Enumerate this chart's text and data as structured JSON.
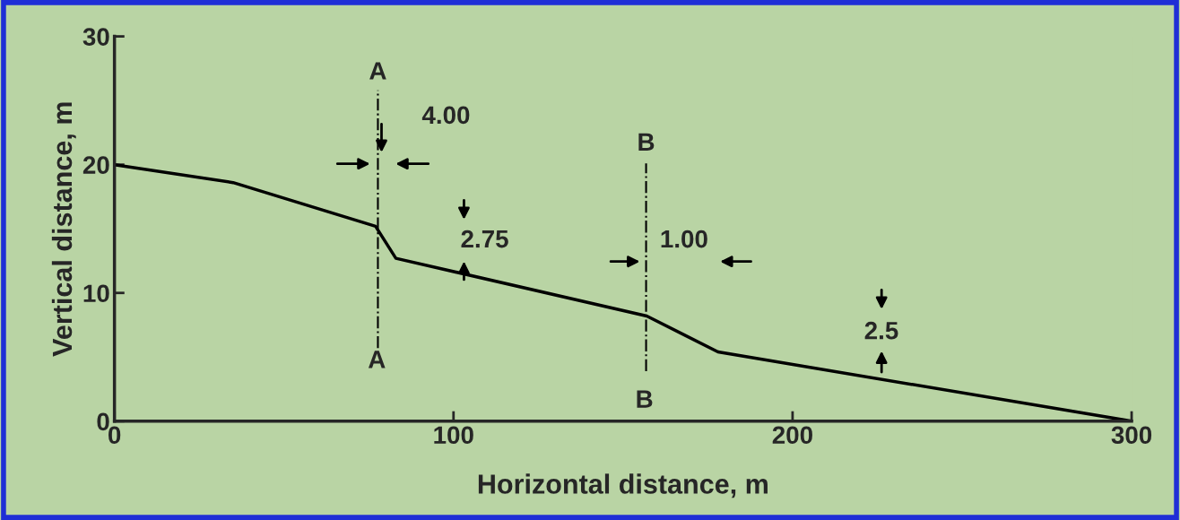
{
  "chart_data": {
    "type": "line",
    "xlabel": "Horizontal distance, m",
    "ylabel": "Vertical distance, m",
    "x": [
      0,
      35,
      77,
      83,
      157,
      178,
      300
    ],
    "series": [
      {
        "color": "#000000",
        "values": [
          20,
          18.6,
          15.2,
          12.7,
          8.2,
          5.4,
          0
        ]
      }
    ],
    "xlim": [
      0,
      300
    ],
    "ylim": [
      0,
      30
    ],
    "xticks": [
      0,
      100,
      200,
      300
    ],
    "yticks": [
      0,
      10,
      20,
      30
    ],
    "grid": false,
    "legend": false,
    "marker": "none",
    "line_style": "solid",
    "ref_lines": [
      {
        "axis": "x",
        "value": 77.7,
        "label": "A",
        "color": "#000000",
        "line_style": "dashdot"
      },
      {
        "axis": "x",
        "value": 156.8,
        "label": "B",
        "color": "#000000",
        "line_style": "dashdot"
      }
    ],
    "annotations": [
      "A",
      "B",
      "4.00",
      "2.75",
      "1.00",
      "2.5"
    ]
  }
}
